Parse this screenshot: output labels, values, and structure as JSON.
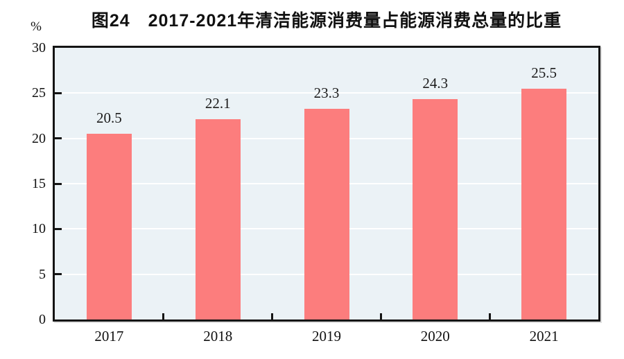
{
  "title": "图24　2017-2021年清洁能源消费量占能源消费总量的比重",
  "unit_label": "%",
  "chart_data": {
    "type": "bar",
    "title": "图24　2017-2021年清洁能源消费量占能源消费总量的比重",
    "categories": [
      "2017",
      "2018",
      "2019",
      "2020",
      "2021"
    ],
    "values": [
      20.5,
      22.1,
      23.3,
      24.3,
      25.5
    ],
    "value_labels": [
      "20.5",
      "22.1",
      "23.3",
      "24.3",
      "25.5"
    ],
    "xlabel": "",
    "ylabel": "%",
    "ylim": [
      0,
      30
    ],
    "yticks": [
      0,
      5,
      10,
      15,
      20,
      25,
      30
    ],
    "grid": "horizontal",
    "legend": "none",
    "colors": {
      "bar": "#FC7D7D",
      "plot_background": "#EBF2F6",
      "gridline": "#FFFFFF",
      "axis_frame": "#141414",
      "text": "#111111"
    }
  }
}
